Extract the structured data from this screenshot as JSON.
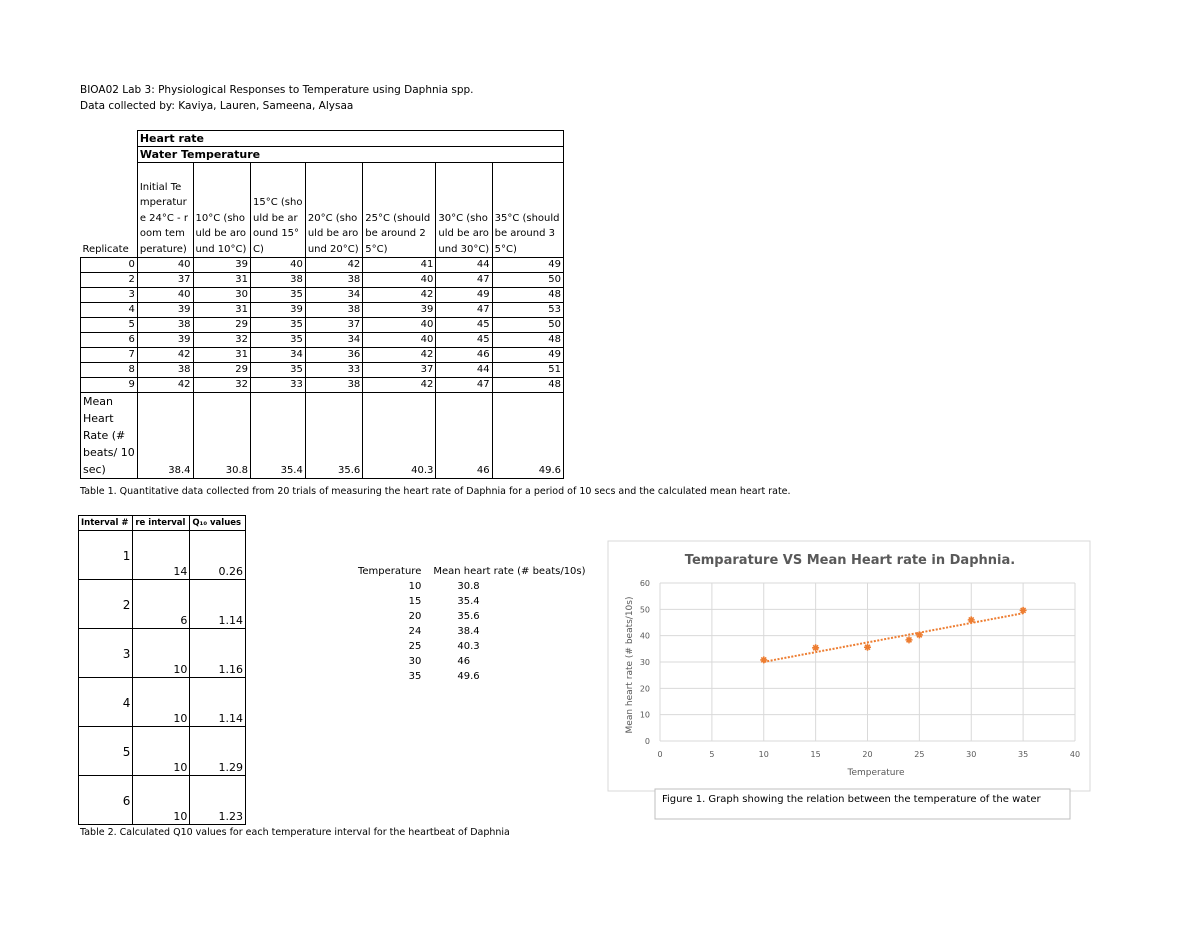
{
  "header": {
    "line1": "BIOA02 Lab 3: Physiological Responses to Temperature using Daphnia spp.",
    "line2": "Data collected by: Kaviya, Lauren, Sameena, Alysaa"
  },
  "table1": {
    "title": "Heart rate",
    "subtitle": "Water Temperature",
    "columns": [
      "Replicate",
      "Initial Temperature 24°C - room temperature)",
      "10°C (should be around 10°C)",
      "15°C (should be around 15°C)",
      "20°C (should be around 20°C)",
      "25°C (should be around 25°C)",
      "30°C (should be around 30°C)",
      "35°C (should be around 35°C)"
    ],
    "rows": [
      [
        0,
        40,
        39,
        40,
        42,
        41,
        44,
        49
      ],
      [
        2,
        37,
        31,
        38,
        38,
        40,
        47,
        50
      ],
      [
        3,
        40,
        30,
        35,
        34,
        42,
        49,
        48
      ],
      [
        4,
        39,
        31,
        39,
        38,
        39,
        47,
        53
      ],
      [
        5,
        38,
        29,
        35,
        37,
        40,
        45,
        50
      ],
      [
        6,
        39,
        32,
        35,
        34,
        40,
        45,
        48
      ],
      [
        7,
        42,
        31,
        34,
        36,
        42,
        46,
        49
      ],
      [
        8,
        38,
        29,
        35,
        33,
        37,
        44,
        51
      ],
      [
        9,
        42,
        32,
        33,
        38,
        42,
        47,
        48
      ]
    ],
    "mean_label": "Mean Heart Rate (# beats/ 10 sec)",
    "means": [
      38.4,
      30.8,
      35.4,
      35.6,
      40.3,
      46,
      49.6
    ],
    "caption": "Table 1. Quantitative data collected from 20 trials of measuring the heart rate of Daphnia for a period of 10 secs and the calculated mean heart rate."
  },
  "table2": {
    "columns": [
      "Interval #",
      "re interval",
      "Q₁₀ values"
    ],
    "rows": [
      [
        1,
        14,
        0.26
      ],
      [
        2,
        6,
        1.14
      ],
      [
        3,
        10,
        1.16
      ],
      [
        4,
        10,
        1.14
      ],
      [
        5,
        10,
        1.29
      ],
      [
        6,
        10,
        1.23
      ]
    ],
    "caption": "Table 2. Calculated Q10 values for each temperature interval  for the heartbeat of Daphnia"
  },
  "table3": {
    "columns": [
      "Temperature",
      "Mean heart rate (# beats/10s)"
    ],
    "rows": [
      [
        10,
        30.8
      ],
      [
        15,
        35.4
      ],
      [
        20,
        35.6
      ],
      [
        24,
        38.4
      ],
      [
        25,
        40.3
      ],
      [
        30,
        46
      ],
      [
        35,
        49.6
      ]
    ]
  },
  "chart_data": {
    "type": "scatter",
    "title": "Temparature VS Mean Heart rate in Daphnia.",
    "x_label": "Temperature",
    "y_label": "Mean heart rate (# beats/10s)",
    "x": [
      10,
      15,
      20,
      24,
      25,
      30,
      35
    ],
    "series": [
      {
        "name": "Mean heart rate (# beats/10s)",
        "color": "#ed7d31",
        "values": [
          30.8,
          35.4,
          35.6,
          38.4,
          40.3,
          46,
          49.6
        ]
      }
    ],
    "xlim": [
      0,
      40
    ],
    "xticks": [
      0,
      5,
      10,
      15,
      20,
      25,
      30,
      35,
      40
    ],
    "ylim": [
      0,
      60
    ],
    "yticks": [
      0,
      10,
      20,
      30,
      40,
      50,
      60
    ],
    "grid": true,
    "trendline": "linear"
  },
  "figure_caption": "Figure 1. Graph showing the relation between the temperature of the water"
}
